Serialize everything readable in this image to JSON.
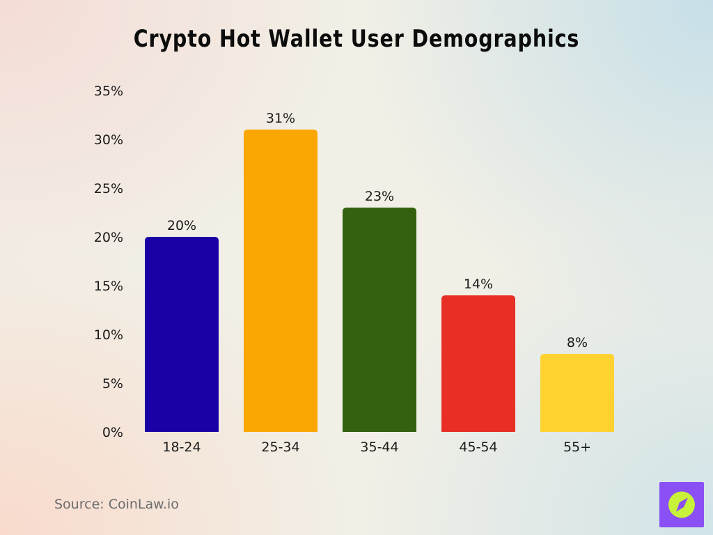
{
  "chart_data": {
    "type": "bar",
    "title": "Crypto Hot Wallet User Demographics",
    "categories": [
      "18-24",
      "25-34",
      "35-44",
      "45-54",
      "55+"
    ],
    "values": [
      20,
      31,
      23,
      14,
      8
    ],
    "data_labels": [
      "20%",
      "31%",
      "23%",
      "14%",
      "8%"
    ],
    "bar_colors": [
      "#1a01a5",
      "#fba703",
      "#336110",
      "#e72f25",
      "#ffd22f"
    ],
    "ylim": [
      0,
      35
    ],
    "yticks": [
      0,
      5,
      10,
      15,
      20,
      25,
      30,
      35
    ],
    "ytick_labels": [
      "0%",
      "5%",
      "10%",
      "15%",
      "20%",
      "25%",
      "30%",
      "35%"
    ],
    "xlabel": "",
    "ylabel": "",
    "grid": false,
    "legend": "none"
  },
  "source": "Source: CoinLaw.io",
  "logo": {
    "icon": "compass-icon",
    "background_color": "#8a4ff5",
    "circle_color": "#c8f23a",
    "needle_color": "#8a4ff5"
  }
}
